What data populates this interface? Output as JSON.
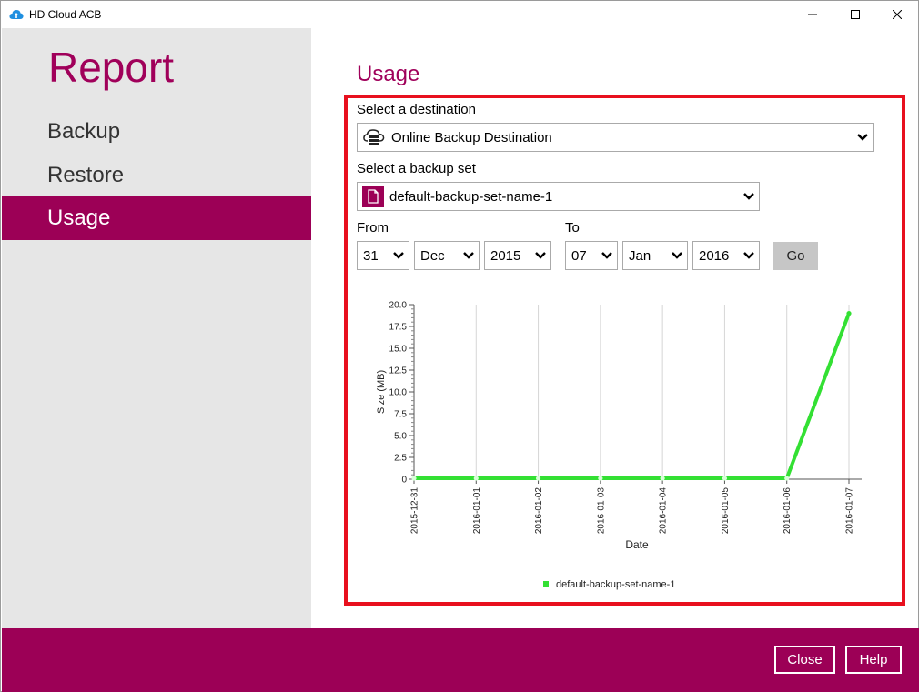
{
  "window": {
    "title": "HD Cloud ACB"
  },
  "sidebar": {
    "title": "Report",
    "items": [
      {
        "label": "Backup"
      },
      {
        "label": "Restore"
      },
      {
        "label": "Usage"
      }
    ],
    "active_index": 2
  },
  "main": {
    "title": "Usage",
    "destination": {
      "label": "Select a destination",
      "value": "Online Backup Destination",
      "icon": "cloud-server-icon"
    },
    "backup_set": {
      "label": "Select a backup set",
      "value": "default-backup-set-name-1",
      "icon": "document-icon"
    },
    "from": {
      "label": "From",
      "day": "31",
      "month": "Dec",
      "year": "2015"
    },
    "to": {
      "label": "To",
      "day": "07",
      "month": "Jan",
      "year": "2016"
    },
    "go_label": "Go"
  },
  "chart_data": {
    "type": "line",
    "xlabel": "Date",
    "ylabel": "Size (MB)",
    "x": [
      "2015-12-31",
      "2016-01-01",
      "2016-01-02",
      "2016-01-03",
      "2016-01-04",
      "2016-01-05",
      "2016-01-06",
      "2016-01-07"
    ],
    "yticks": [
      "0",
      "2.5",
      "5.0",
      "7.5",
      "10.0",
      "12.5",
      "15.0",
      "17.5",
      "20.0"
    ],
    "ylim": [
      0,
      20
    ],
    "grid": "vertical",
    "legend_position": "bottom-center",
    "series": [
      {
        "name": "default-backup-set-name-1",
        "values": [
          0.1,
          0.1,
          0.1,
          0.1,
          0.1,
          0.1,
          0.1,
          19.0
        ],
        "color": "#33e033"
      }
    ]
  },
  "footer": {
    "close_label": "Close",
    "help_label": "Help"
  },
  "colors": {
    "accent": "#9c0056",
    "highlight": "#e8101e",
    "series": "#33e033"
  }
}
